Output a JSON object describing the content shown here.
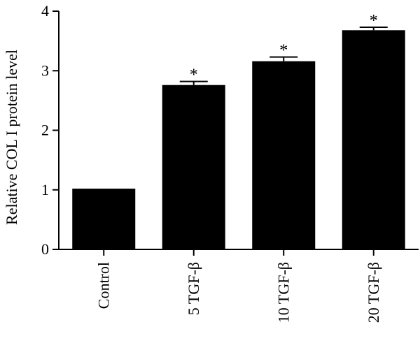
{
  "chart_data": {
    "type": "bar",
    "title": "",
    "xlabel": "",
    "ylabel": "Relative COL I protein level",
    "ylim": [
      0,
      4
    ],
    "yticks": [
      0,
      1,
      2,
      3,
      4
    ],
    "categories": [
      "Control",
      "5 TGF-β",
      "10 TGF-β",
      "20 TGF-β"
    ],
    "values": [
      1.02,
      2.76,
      3.16,
      3.68
    ],
    "errors": [
      0,
      0.06,
      0.07,
      0.05
    ],
    "significance": [
      "",
      "*",
      "*",
      "*"
    ],
    "bar_color": "#000000",
    "grid": false,
    "legend": "none"
  }
}
